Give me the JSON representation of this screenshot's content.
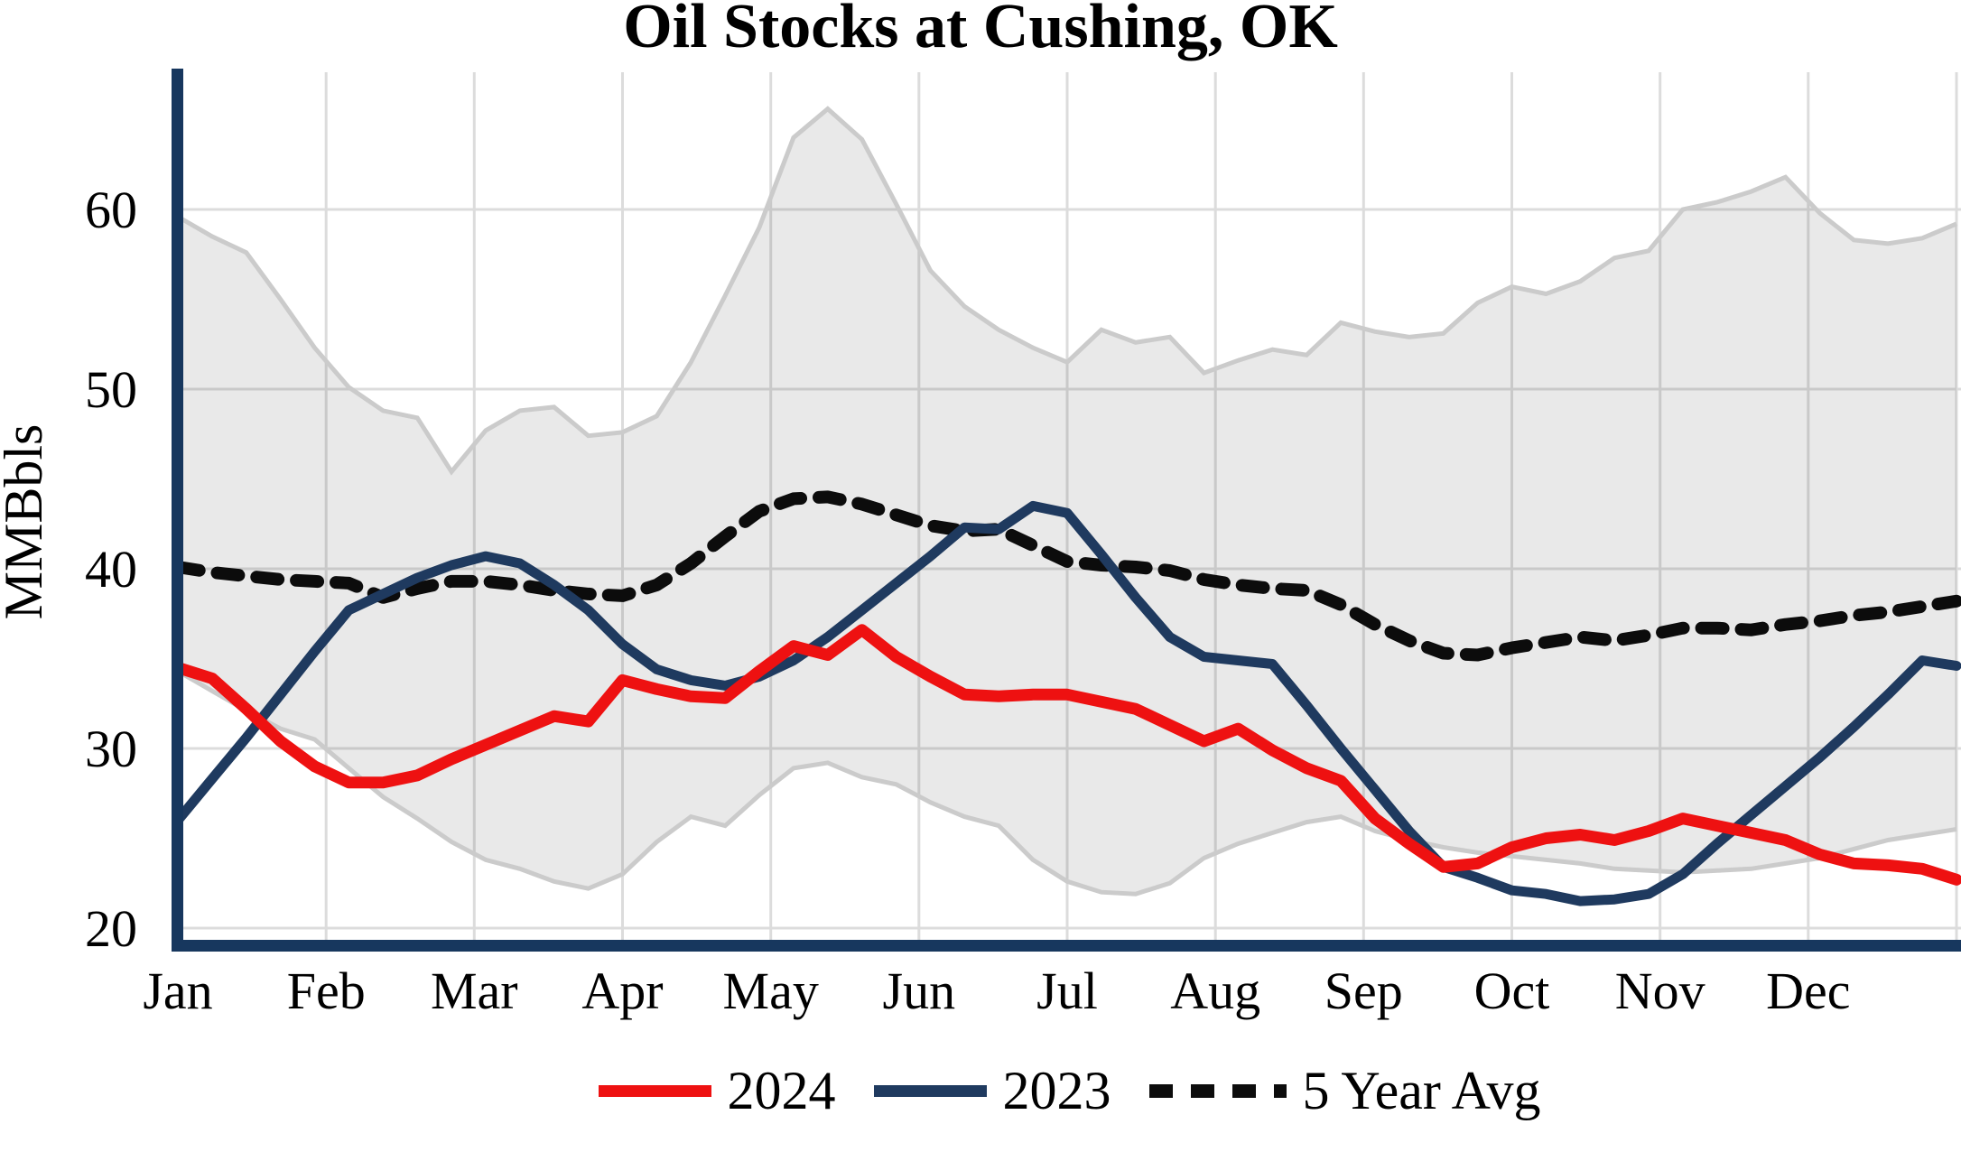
{
  "title": "Oil Stocks at Cushing, OK",
  "y_axis": {
    "label": "MMBbls",
    "ticks": [
      20,
      30,
      40,
      50,
      60
    ]
  },
  "x_axis": {
    "months": [
      "Jan",
      "Feb",
      "Mar",
      "Apr",
      "May",
      "Jun",
      "Jul",
      "Aug",
      "Sep",
      "Oct",
      "Nov",
      "Dec"
    ]
  },
  "legend": [
    {
      "label": "2024",
      "color": "#ee1111",
      "style": "solid"
    },
    {
      "label": "2023",
      "color": "#1f3a5f",
      "style": "solid"
    },
    {
      "label": "5 Year Avg",
      "color": "#0c0c0c",
      "style": "dotted"
    }
  ],
  "colors": {
    "axis": "#17375e",
    "grid": "#dcdcdc",
    "band_fill": "rgba(0,0,0,0.085)",
    "band_edge": "#cbcbcb",
    "red": "#ee1111",
    "navy": "#1f3a5f",
    "dotted": "#0c0c0c"
  },
  "chart_data": {
    "type": "line",
    "title": "Oil Stocks at Cushing, OK",
    "xlabel": "",
    "ylabel": "MMBbls",
    "ylim": [
      19,
      67.5
    ],
    "yticks": [
      20,
      30,
      40,
      50,
      60
    ],
    "x_categories": [
      "Jan",
      "Feb",
      "Mar",
      "Apr",
      "May",
      "Jun",
      "Jul",
      "Aug",
      "Sep",
      "Oct",
      "Nov",
      "Dec"
    ],
    "x_resolution": "weekly",
    "weeks": 53,
    "grid": true,
    "legend_position": "bottom",
    "series": [
      {
        "name": "2024",
        "role": "line",
        "color": "#ee1111",
        "values": [
          34.5,
          33.9,
          32.2,
          30.4,
          29.0,
          28.1,
          28.1,
          28.5,
          29.4,
          30.2,
          31.0,
          31.8,
          31.5,
          33.8,
          33.3,
          32.9,
          32.8,
          34.3,
          35.7,
          35.2,
          36.6,
          35.1,
          34.0,
          33.0,
          32.9,
          33.0,
          33.0,
          32.6,
          32.2,
          31.3,
          30.4,
          31.1,
          29.9,
          28.9,
          28.2,
          26.1,
          24.7,
          23.4,
          23.6,
          24.5,
          25.0,
          25.2,
          24.9,
          25.4,
          26.1,
          25.7,
          25.3,
          24.9,
          24.1,
          23.6,
          23.5,
          23.3,
          22.7
        ]
      },
      {
        "name": "2023",
        "role": "line",
        "color": "#1f3a5f",
        "values": [
          26.0,
          28.3,
          30.6,
          33.0,
          35.4,
          37.7,
          38.6,
          39.5,
          40.2,
          40.7,
          40.3,
          39.1,
          37.7,
          35.8,
          34.4,
          33.8,
          33.5,
          34.0,
          34.9,
          36.2,
          37.7,
          39.2,
          40.7,
          42.3,
          42.2,
          43.5,
          43.1,
          40.8,
          38.4,
          36.2,
          35.1,
          34.9,
          34.7,
          32.4,
          30.0,
          27.7,
          25.4,
          23.4,
          22.8,
          22.1,
          21.9,
          21.5,
          21.6,
          21.9,
          23.0,
          24.7,
          26.3,
          27.9,
          29.5,
          31.2,
          33.0,
          34.9,
          34.6
        ]
      },
      {
        "name": "5 Year Avg",
        "role": "line",
        "style": "dotted",
        "color": "#0c0c0c",
        "values": [
          40.1,
          39.8,
          39.6,
          39.4,
          39.3,
          39.2,
          38.4,
          38.9,
          39.3,
          39.3,
          39.1,
          38.8,
          38.6,
          38.5,
          39.1,
          40.3,
          41.8,
          43.2,
          43.9,
          44.0,
          43.6,
          43.0,
          42.4,
          42.1,
          42.2,
          41.3,
          40.4,
          40.2,
          40.1,
          39.9,
          39.4,
          39.1,
          38.9,
          38.8,
          38.0,
          36.9,
          36.0,
          35.3,
          35.2,
          35.6,
          35.9,
          36.2,
          36.0,
          36.3,
          36.7,
          36.7,
          36.6,
          36.9,
          37.1,
          37.4,
          37.6,
          37.9,
          38.2
        ]
      },
      {
        "name": "5 Year Range Max",
        "role": "band-upper",
        "color": "#cbcbcb",
        "values": [
          59.6,
          58.5,
          57.6,
          55.0,
          52.3,
          50.1,
          48.8,
          48.4,
          45.4,
          47.7,
          48.8,
          49.0,
          47.4,
          47.6,
          48.5,
          51.5,
          55.2,
          59.0,
          64.0,
          65.6,
          63.9,
          60.3,
          56.6,
          54.6,
          53.3,
          52.3,
          51.5,
          53.3,
          52.6,
          52.9,
          50.9,
          51.6,
          52.2,
          51.9,
          53.7,
          53.2,
          52.9,
          53.1,
          54.8,
          55.7,
          55.3,
          56.0,
          57.3,
          57.7,
          60.0,
          60.4,
          61.0,
          61.8,
          59.8,
          58.3,
          58.1,
          58.4,
          59.2
        ]
      },
      {
        "name": "5 Year Range Min",
        "role": "band-lower",
        "color": "#cbcbcb",
        "values": [
          34.3,
          33.2,
          32.1,
          31.1,
          30.5,
          28.9,
          27.3,
          26.1,
          24.8,
          23.8,
          23.3,
          22.6,
          22.2,
          23.0,
          24.8,
          26.2,
          25.7,
          27.4,
          28.9,
          29.2,
          28.4,
          28.0,
          27.0,
          26.2,
          25.7,
          23.8,
          22.6,
          22.0,
          21.9,
          22.5,
          23.9,
          24.7,
          25.3,
          25.9,
          26.2,
          25.4,
          24.9,
          24.5,
          24.2,
          24.0,
          23.8,
          23.6,
          23.3,
          23.2,
          23.1,
          23.2,
          23.3,
          23.6,
          23.9,
          24.4,
          24.9,
          25.2,
          25.5
        ]
      }
    ]
  }
}
